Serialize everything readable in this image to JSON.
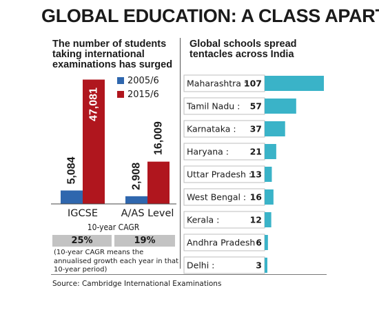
{
  "title": "GLOBAL EDUCATION: A CLASS APART?",
  "source": "Source: Cambridge International Examinations",
  "left_panel": {
    "subtitle": "The number of students taking international examinations has surged",
    "cagr_label": "10-year CAGR",
    "cagr_values": [
      "25%",
      "19%"
    ],
    "cagr_note": "(10-year CAGR means the annualised growth each year in that 10-year period)"
  },
  "right_panel": {
    "subtitle": "Global schools spread tentacles across India"
  },
  "colors": {
    "series_2005": "#2f67ae",
    "series_2015": "#b0161e",
    "state_bar": "#3ab3c8",
    "cagr_box": "#c3c3c3"
  },
  "chart_data": [
    {
      "type": "bar",
      "title": "The number of students taking international examinations has surged",
      "categories": [
        "IGCSE",
        "A/AS  Level"
      ],
      "series": [
        {
          "name": "2005/6",
          "values": [
            5084,
            2908
          ],
          "labels": [
            "5,084",
            "2,908"
          ]
        },
        {
          "name": "2015/6",
          "values": [
            47081,
            16009
          ],
          "labels": [
            "47,081",
            "16,009"
          ]
        }
      ],
      "ylim": [
        0,
        48000
      ],
      "legend_position": "top-right"
    },
    {
      "type": "bar",
      "orientation": "horizontal",
      "title": "Global schools spread tentacles across India",
      "categories": [
        "Maharashtra",
        "Tamil Nadu",
        "Karnataka",
        "Haryana",
        "Uttar Pradesh",
        "West Bengal",
        "Kerala",
        "Andhra Pradesh",
        "Delhi"
      ],
      "values": [
        107,
        57,
        37,
        21,
        13,
        16,
        12,
        6,
        3
      ],
      "xlim": [
        0,
        107
      ]
    }
  ]
}
